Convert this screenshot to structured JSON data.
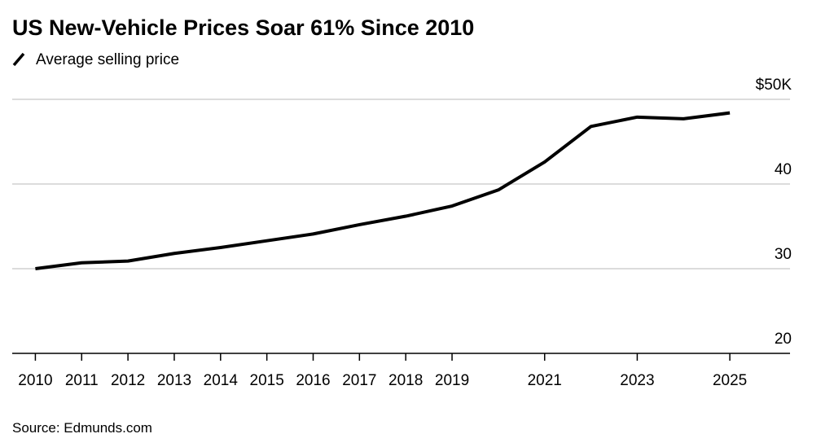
{
  "chart_data": {
    "type": "line",
    "title": "US New-Vehicle Prices Soar 61% Since 2010",
    "source": "Source: Edmunds.com",
    "x": [
      2010,
      2011,
      2012,
      2013,
      2014,
      2015,
      2016,
      2017,
      2018,
      2019,
      2020,
      2021,
      2022,
      2023,
      2024,
      2025
    ],
    "series": [
      {
        "name": "Average selling price",
        "color": "#000000",
        "values": [
          30.0,
          30.7,
          30.9,
          31.8,
          32.5,
          33.3,
          34.1,
          35.2,
          36.2,
          37.4,
          39.3,
          42.6,
          46.8,
          47.9,
          47.7,
          48.4
        ]
      }
    ],
    "xlim": [
      2009.5,
      2026.3
    ],
    "xticks": [
      2010,
      2011,
      2012,
      2013,
      2014,
      2015,
      2016,
      2017,
      2018,
      2019,
      2021,
      2023,
      2025
    ],
    "ylim": [
      20,
      50
    ],
    "yticks": [
      {
        "value": 50,
        "label": "$50K"
      },
      40,
      30,
      20
    ],
    "grid": true
  }
}
